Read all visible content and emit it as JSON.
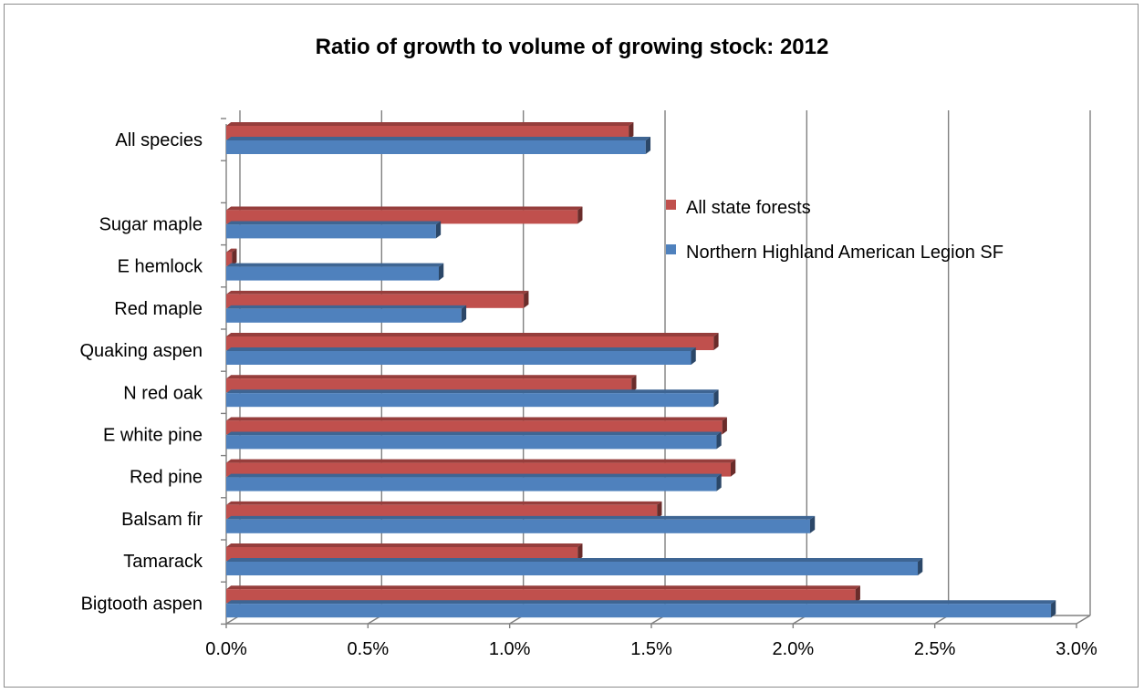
{
  "chart_data": {
    "type": "bar",
    "orientation": "horizontal",
    "style": "3d",
    "title": "Ratio of growth to volume of growing stock:  2012",
    "xlabel": "",
    "ylabel": "",
    "xlim": [
      0,
      0.03
    ],
    "x_tick_labels": [
      "0.0%",
      "0.5%",
      "1.0%",
      "1.5%",
      "2.0%",
      "2.5%",
      "3.0%"
    ],
    "grid": true,
    "legend_position": "right",
    "categories": [
      "All species",
      "Sugar maple",
      "E hemlock",
      "Red maple",
      "Quaking aspen",
      "N red oak",
      "E white pine",
      "Red pine",
      "Balsam fir",
      "Tamarack",
      "Bigtooth aspen"
    ],
    "series": [
      {
        "name": "All state forests",
        "color": "#c0504d",
        "values": [
          0.0142,
          0.0124,
          0.0002,
          0.0105,
          0.0172,
          0.0143,
          0.0175,
          0.0178,
          0.0152,
          0.0124,
          0.0222
        ]
      },
      {
        "name": "Northern Highland American Legion SF",
        "color": "#4f81bd",
        "values": [
          0.0148,
          0.0074,
          0.0075,
          0.0083,
          0.0164,
          0.0172,
          0.0173,
          0.0173,
          0.0206,
          0.0244,
          0.0291
        ]
      }
    ]
  }
}
